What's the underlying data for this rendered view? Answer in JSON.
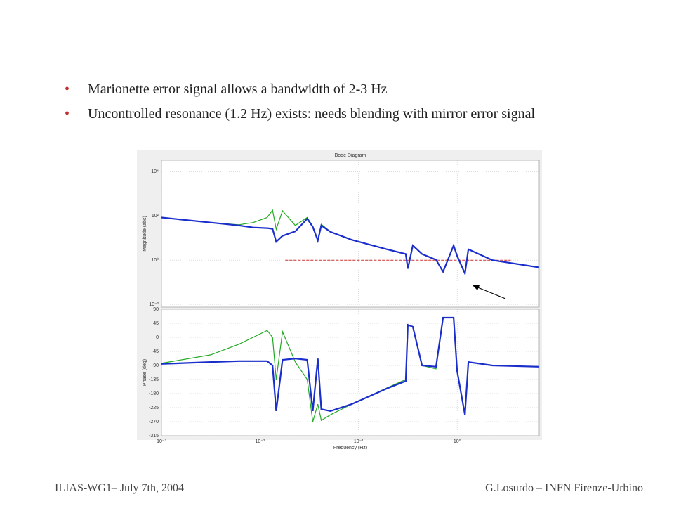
{
  "bullets": [
    "Marionette error signal allows a bandwidth of 2-3 Hz",
    "Uncontrolled resonance (1.2 Hz) exists: needs blending with mirror error signal"
  ],
  "footer": {
    "left": "ILIAS-WG1– July 7th, 2004",
    "right": "G.Losurdo – INFN Firenze-Urbino"
  },
  "chart_data": [
    {
      "type": "line",
      "title": "Bode Diagram",
      "ylabel": "Magnitude (abs)",
      "xlog": true,
      "ylog": true,
      "grid": true,
      "xlim": [
        0.001,
        6.8
      ],
      "ylim": [
        0.0075,
        33000
      ],
      "xticks": [
        0.001,
        0.01,
        0.1,
        1
      ],
      "yticks": [
        {
          "value": 0.01,
          "label": "10⁻²"
        },
        {
          "value": 1,
          "label": "10⁰"
        },
        {
          "value": 100,
          "label": "10²"
        },
        {
          "value": 10000,
          "label": "10⁴"
        }
      ],
      "x": [
        0.001,
        0.00316,
        0.0061,
        0.0085,
        0.0118,
        0.0134,
        0.0146,
        0.0169,
        0.0228,
        0.0301,
        0.0343,
        0.0386,
        0.0418,
        0.0518,
        0.0849,
        0.193,
        0.301,
        0.316,
        0.355,
        0.44,
        0.61,
        0.72,
        0.92,
        1.0,
        1.2,
        1.3,
        2.28,
        6.8
      ],
      "series": [
        {
          "color": "#22aa22",
          "values": [
            85,
            50,
            40,
            50,
            85,
            182,
            25,
            170,
            37,
            85,
            34,
            8.3,
            42,
            19,
            8.3,
            3.1,
            1.9,
            0.41,
            4.6,
            1.9,
            1.04,
            0.3,
            4.6,
            1.55,
            0.25,
            3.1,
            1,
            0.47
          ]
        },
        {
          "color": "#1a2ecc",
          "values": [
            85,
            50,
            37,
            30,
            28,
            26,
            6.8,
            12.5,
            20,
            75,
            32,
            7.7,
            37,
            19,
            8.3,
            3.1,
            1.9,
            0.41,
            4.6,
            1.9,
            1.04,
            0.3,
            4.6,
            1.55,
            0.25,
            3.1,
            1,
            0.47
          ]
        }
      ],
      "reference": {
        "x": [
          0.018,
          3.5
        ],
        "values": [
          1,
          1
        ],
        "color": "#d03030"
      }
    },
    {
      "type": "line",
      "ylabel": "Phase (deg)",
      "xlabel": "Frequency (Hz)",
      "xlog": true,
      "ylog": false,
      "grid": true,
      "xlim": [
        0.001,
        6.8
      ],
      "ylim": [
        -315,
        90
      ],
      "xticks": [
        {
          "value": 0.001,
          "label": "10⁻³"
        },
        {
          "value": 0.01,
          "label": "10⁻²"
        },
        {
          "value": 0.1,
          "label": "10⁻¹"
        },
        {
          "value": 1,
          "label": "10⁰"
        }
      ],
      "yticks": [
        90,
        45,
        0,
        -45,
        -90,
        -135,
        -180,
        -225,
        -270,
        -315
      ],
      "x": [
        0.001,
        0.00316,
        0.0061,
        0.0085,
        0.0118,
        0.0134,
        0.0146,
        0.0169,
        0.0228,
        0.0301,
        0.0343,
        0.0386,
        0.0418,
        0.0518,
        0.0849,
        0.193,
        0.301,
        0.316,
        0.355,
        0.44,
        0.61,
        0.72,
        0.92,
        1.0,
        1.2,
        1.3,
        2.28,
        6.8
      ],
      "series": [
        {
          "color": "#22aa22",
          "values": [
            -83,
            -56,
            -22,
            0,
            22,
            0,
            -135,
            18,
            -79,
            -135,
            -270,
            -214,
            -266,
            -248,
            -214,
            -162,
            -135,
            40,
            34,
            -90,
            -101,
            63,
            63,
            -108,
            -248,
            -79,
            -90,
            -94
          ]
        },
        {
          "color": "#1a2ecc",
          "values": [
            -85,
            -79,
            -76,
            -76,
            -76,
            -90,
            -236,
            -72,
            -68,
            -72,
            -236,
            -68,
            -230,
            -236,
            -214,
            -164,
            -140,
            40,
            34,
            -90,
            -94,
            63,
            63,
            -108,
            -248,
            -79,
            -90,
            -94
          ]
        }
      ]
    }
  ]
}
